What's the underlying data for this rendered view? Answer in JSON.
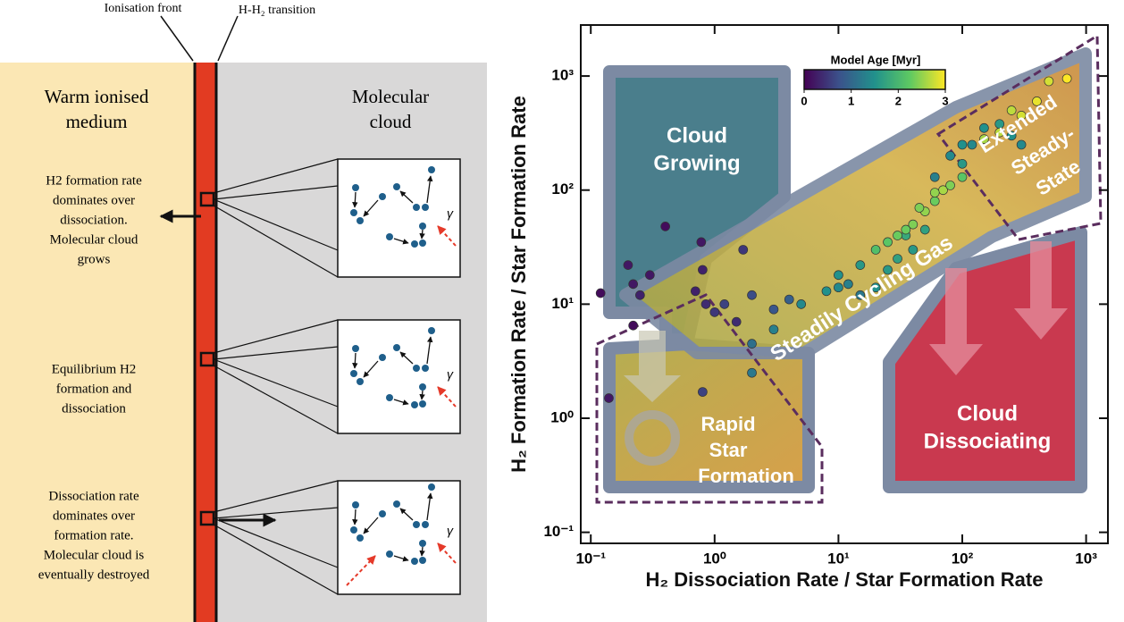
{
  "diagram": {
    "ionisation_front": "Ionisation front",
    "transition": "H-H₂ transition",
    "warm_medium": [
      "Warm ionised",
      "medium"
    ],
    "molecular_cloud": [
      "Molecular",
      "cloud"
    ],
    "descriptions": [
      [
        "H2 formation rate",
        "dominates over",
        "dissociation.",
        "Molecular cloud",
        "grows"
      ],
      [
        "Equilibrium H2",
        "formation and",
        "dissociation"
      ],
      [
        "Dissociation rate",
        "dominates over",
        "formation rate.",
        "Molecular cloud is",
        "eventually destroyed"
      ]
    ],
    "gamma": "γ"
  },
  "chart_data": {
    "type": "scatter",
    "x_label": "H₂ Dissociation Rate / Star Formation Rate",
    "y_label": "H₂ Formation Rate / Star Formation Rate",
    "log_x": true,
    "log_y": true,
    "xlim": [
      0.083,
      1500
    ],
    "ylim": [
      0.08,
      2800
    ],
    "xticks": [
      {
        "value": 0.1,
        "label": "10⁻¹"
      },
      {
        "value": 1,
        "label": "10⁰"
      },
      {
        "value": 10,
        "label": "10¹"
      },
      {
        "value": 100,
        "label": "10²"
      },
      {
        "value": 1000,
        "label": "10³"
      }
    ],
    "yticks": [
      {
        "value": 0.1,
        "label": "10⁻¹"
      },
      {
        "value": 1,
        "label": "10⁰"
      },
      {
        "value": 10,
        "label": "10¹"
      },
      {
        "value": 100,
        "label": "10²"
      },
      {
        "value": 1000,
        "label": "10³"
      }
    ],
    "colorbar": {
      "label": "Model Age [Myr]",
      "lim": [
        0,
        3
      ],
      "ticks": [
        0,
        1,
        2,
        3
      ]
    },
    "annotations": {
      "cloud_growing": [
        "Cloud",
        "Growing"
      ],
      "extended": [
        "Extended",
        "Steady-",
        "State"
      ],
      "cycling": "Steadily Cycling Gas",
      "rapid": [
        "Rapid",
        "Star",
        "Formation"
      ],
      "dissociating": [
        "Cloud",
        "Dissociating"
      ]
    },
    "x": [
      0.12,
      0.2,
      0.22,
      0.25,
      0.22,
      0.4,
      0.78,
      0.8,
      0.85,
      0.3,
      0.7,
      1.0,
      1.2,
      1.5,
      1.7,
      2,
      0.14,
      0.8,
      3,
      4,
      2,
      2,
      3,
      5,
      8,
      10,
      10,
      12,
      15,
      15,
      20,
      25,
      30,
      40,
      35,
      50,
      60,
      80,
      100,
      100,
      120,
      150,
      200,
      250,
      300,
      20,
      25,
      30,
      40,
      50,
      60,
      70,
      80,
      60,
      150,
      200,
      300,
      400,
      500,
      700,
      250,
      100,
      35,
      45
    ],
    "y": [
      12.5,
      22,
      6.5,
      12,
      15,
      48,
      35,
      20,
      10,
      18,
      13,
      8.5,
      10,
      7,
      30,
      12,
      1.5,
      1.7,
      9,
      11,
      2.5,
      4.5,
      6,
      10,
      13,
      14,
      18,
      15,
      22,
      12,
      14,
      20,
      25,
      30,
      40,
      45,
      130,
      200,
      250,
      170,
      250,
      350,
      380,
      300,
      250,
      30,
      35,
      40,
      50,
      65,
      80,
      100,
      110,
      95,
      280,
      320,
      450,
      600,
      900,
      950,
      500,
      130,
      45,
      70
    ],
    "age": [
      0.1,
      0.2,
      0.1,
      0.3,
      0.2,
      0.1,
      0.2,
      0.3,
      0.4,
      0.2,
      0.3,
      0.5,
      0.6,
      0.4,
      0.5,
      0.7,
      0.2,
      0.6,
      0.8,
      0.9,
      1.2,
      1.1,
      1.3,
      1.4,
      1.5,
      1.4,
      1.5,
      1.3,
      1.6,
      1.2,
      1.5,
      1.6,
      1.7,
      1.6,
      1.8,
      1.7,
      1.3,
      1.4,
      1.5,
      1.6,
      1.4,
      1.5,
      1.6,
      1.5,
      1.4,
      2.1,
      2.2,
      2.3,
      2.4,
      2.5,
      2.3,
      2.6,
      2.4,
      2.5,
      2.6,
      2.7,
      2.8,
      2.9,
      2.8,
      3.0,
      2.7,
      2.2,
      2.3,
      2.4
    ]
  }
}
